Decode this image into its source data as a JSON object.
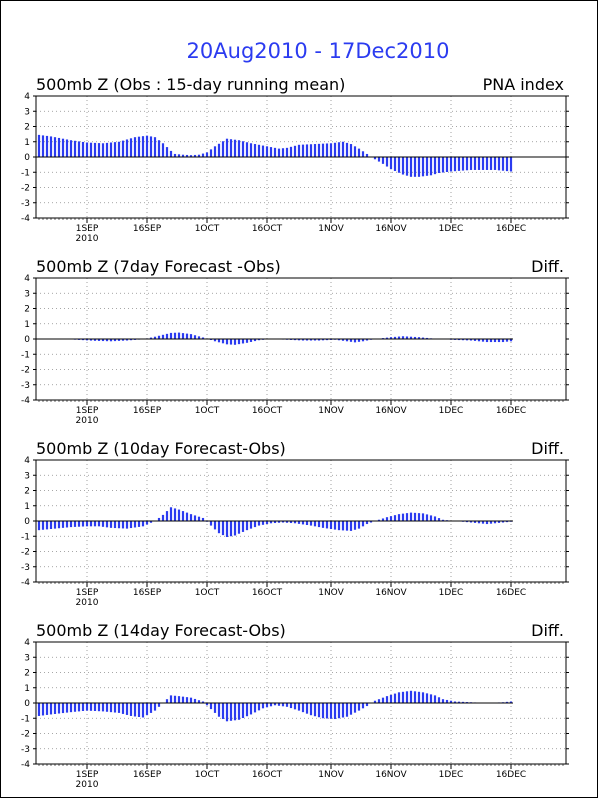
{
  "title": "20Aug2010 - 17Dec2010",
  "colors": {
    "bar": "#2b3bf0",
    "title": "#2b3bf0",
    "axis": "#000000",
    "grid": "#8a8a8a"
  },
  "chart_data": [
    {
      "type": "bar",
      "title": "500mb Z (Obs : 15-day running mean)",
      "right_label": "PNA index",
      "ylim": [
        -4,
        4
      ],
      "yticks": [
        "4",
        "3",
        "2",
        "1",
        "0",
        "-1",
        "-2",
        "-3",
        "-4"
      ],
      "xticks": [
        {
          "day": 12,
          "label": "1SEP",
          "sub": "2010"
        },
        {
          "day": 27,
          "label": "16SEP"
        },
        {
          "day": 42,
          "label": "1OCT"
        },
        {
          "day": 57,
          "label": "16OCT"
        },
        {
          "day": 73,
          "label": "1NOV"
        },
        {
          "day": 88,
          "label": "16NOV"
        },
        {
          "day": 103,
          "label": "1DEC"
        },
        {
          "day": 118,
          "label": "16DEC"
        }
      ],
      "x_end": 131,
      "keypoints": [
        [
          0,
          1.45
        ],
        [
          3,
          1.35
        ],
        [
          8,
          1.1
        ],
        [
          12,
          0.95
        ],
        [
          16,
          0.9
        ],
        [
          20,
          1.0
        ],
        [
          24,
          1.3
        ],
        [
          27,
          1.4
        ],
        [
          29,
          1.3
        ],
        [
          31,
          0.9
        ],
        [
          33,
          0.4
        ],
        [
          34,
          0.2
        ],
        [
          36,
          0.15
        ],
        [
          38,
          0.12
        ],
        [
          40,
          0.15
        ],
        [
          42,
          0.3
        ],
        [
          44,
          0.7
        ],
        [
          47,
          1.2
        ],
        [
          50,
          1.1
        ],
        [
          53,
          0.9
        ],
        [
          57,
          0.7
        ],
        [
          60,
          0.55
        ],
        [
          62,
          0.6
        ],
        [
          65,
          0.8
        ],
        [
          69,
          0.85
        ],
        [
          73,
          0.9
        ],
        [
          76,
          1.0
        ],
        [
          78,
          0.85
        ],
        [
          80,
          0.55
        ],
        [
          82,
          0.2
        ],
        [
          84,
          -0.15
        ],
        [
          86,
          -0.45
        ],
        [
          88,
          -0.8
        ],
        [
          91,
          -1.15
        ],
        [
          93,
          -1.3
        ],
        [
          95,
          -1.3
        ],
        [
          98,
          -1.2
        ],
        [
          100,
          -1.05
        ],
        [
          103,
          -0.95
        ],
        [
          108,
          -0.85
        ],
        [
          114,
          -0.85
        ],
        [
          118,
          -0.95
        ]
      ],
      "data_end": 118
    },
    {
      "type": "bar",
      "title": "500mb Z (7day Forecast -Obs)",
      "right_label": "Diff.",
      "ylim": [
        -4,
        4
      ],
      "yticks": [
        "4",
        "3",
        "2",
        "1",
        "0",
        "-1",
        "-2",
        "-3",
        "-4"
      ],
      "xticks": [
        {
          "day": 12,
          "label": "1SEP",
          "sub": "2010"
        },
        {
          "day": 27,
          "label": "16SEP"
        },
        {
          "day": 42,
          "label": "1OCT"
        },
        {
          "day": 57,
          "label": "16OCT"
        },
        {
          "day": 73,
          "label": "1NOV"
        },
        {
          "day": 88,
          "label": "16NOV"
        },
        {
          "day": 103,
          "label": "1DEC"
        },
        {
          "day": 118,
          "label": "16DEC"
        }
      ],
      "x_end": 131,
      "keypoints": [
        [
          0,
          0
        ],
        [
          8,
          -0.03
        ],
        [
          14,
          -0.12
        ],
        [
          18,
          -0.15
        ],
        [
          22,
          -0.1
        ],
        [
          26,
          -0.02
        ],
        [
          29,
          0.15
        ],
        [
          33,
          0.4
        ],
        [
          35,
          0.42
        ],
        [
          38,
          0.32
        ],
        [
          41,
          0.1
        ],
        [
          44,
          -0.15
        ],
        [
          47,
          -0.35
        ],
        [
          49,
          -0.38
        ],
        [
          52,
          -0.25
        ],
        [
          55,
          -0.08
        ],
        [
          58,
          0
        ],
        [
          62,
          -0.05
        ],
        [
          66,
          -0.1
        ],
        [
          70,
          -0.1
        ],
        [
          74,
          -0.05
        ],
        [
          77,
          -0.15
        ],
        [
          79,
          -0.22
        ],
        [
          81,
          -0.15
        ],
        [
          84,
          0
        ],
        [
          88,
          0.12
        ],
        [
          91,
          0.18
        ],
        [
          95,
          0.12
        ],
        [
          99,
          0.02
        ],
        [
          103,
          -0.05
        ],
        [
          108,
          -0.1
        ],
        [
          112,
          -0.2
        ],
        [
          116,
          -0.2
        ],
        [
          118,
          -0.15
        ]
      ],
      "data_end": 118
    },
    {
      "type": "bar",
      "title": "500mb Z (10day Forecast-Obs)",
      "right_label": "Diff.",
      "ylim": [
        -4,
        4
      ],
      "yticks": [
        "4",
        "3",
        "2",
        "1",
        "0",
        "-1",
        "-2",
        "-3",
        "-4"
      ],
      "xticks": [
        {
          "day": 12,
          "label": "1SEP",
          "sub": "2010"
        },
        {
          "day": 27,
          "label": "16SEP"
        },
        {
          "day": 42,
          "label": "1OCT"
        },
        {
          "day": 57,
          "label": "16OCT"
        },
        {
          "day": 73,
          "label": "1NOV"
        },
        {
          "day": 88,
          "label": "16NOV"
        },
        {
          "day": 103,
          "label": "1DEC"
        },
        {
          "day": 118,
          "label": "16DEC"
        }
      ],
      "x_end": 131,
      "keypoints": [
        [
          0,
          -0.6
        ],
        [
          4,
          -0.5
        ],
        [
          8,
          -0.4
        ],
        [
          12,
          -0.35
        ],
        [
          15,
          -0.35
        ],
        [
          18,
          -0.45
        ],
        [
          22,
          -0.5
        ],
        [
          26,
          -0.35
        ],
        [
          29,
          0
        ],
        [
          31,
          0.4
        ],
        [
          33,
          0.9
        ],
        [
          35,
          0.75
        ],
        [
          38,
          0.45
        ],
        [
          41,
          0.2
        ],
        [
          43,
          -0.3
        ],
        [
          45,
          -0.8
        ],
        [
          47,
          -1.05
        ],
        [
          49,
          -0.95
        ],
        [
          52,
          -0.6
        ],
        [
          55,
          -0.3
        ],
        [
          58,
          -0.15
        ],
        [
          61,
          -0.1
        ],
        [
          64,
          -0.15
        ],
        [
          68,
          -0.3
        ],
        [
          71,
          -0.45
        ],
        [
          75,
          -0.6
        ],
        [
          78,
          -0.65
        ],
        [
          80,
          -0.5
        ],
        [
          82,
          -0.2
        ],
        [
          84,
          0
        ],
        [
          87,
          0.25
        ],
        [
          90,
          0.45
        ],
        [
          93,
          0.55
        ],
        [
          96,
          0.5
        ],
        [
          99,
          0.3
        ],
        [
          101,
          0.08
        ],
        [
          104,
          0
        ],
        [
          108,
          -0.1
        ],
        [
          112,
          -0.2
        ],
        [
          116,
          -0.1
        ],
        [
          118,
          -0.05
        ]
      ],
      "data_end": 118
    },
    {
      "type": "bar",
      "title": "500mb Z (14day Forecast-Obs)",
      "right_label": "Diff.",
      "ylim": [
        -4,
        4
      ],
      "yticks": [
        "4",
        "3",
        "2",
        "1",
        "0",
        "-1",
        "-2",
        "-3",
        "-4"
      ],
      "xticks": [
        {
          "day": 12,
          "label": "1SEP",
          "sub": "2010"
        },
        {
          "day": 27,
          "label": "16SEP"
        },
        {
          "day": 42,
          "label": "1OCT"
        },
        {
          "day": 57,
          "label": "16OCT"
        },
        {
          "day": 73,
          "label": "1NOV"
        },
        {
          "day": 88,
          "label": "16NOV"
        },
        {
          "day": 103,
          "label": "1DEC"
        },
        {
          "day": 118,
          "label": "16DEC"
        }
      ],
      "x_end": 131,
      "keypoints": [
        [
          0,
          -0.85
        ],
        [
          3,
          -0.75
        ],
        [
          8,
          -0.6
        ],
        [
          12,
          -0.5
        ],
        [
          16,
          -0.55
        ],
        [
          20,
          -0.65
        ],
        [
          23,
          -0.85
        ],
        [
          26,
          -0.95
        ],
        [
          29,
          -0.5
        ],
        [
          31,
          0
        ],
        [
          33,
          0.5
        ],
        [
          35,
          0.45
        ],
        [
          38,
          0.35
        ],
        [
          41,
          0.1
        ],
        [
          43,
          -0.4
        ],
        [
          45,
          -0.9
        ],
        [
          47,
          -1.2
        ],
        [
          50,
          -1.1
        ],
        [
          53,
          -0.75
        ],
        [
          56,
          -0.35
        ],
        [
          59,
          -0.15
        ],
        [
          62,
          -0.25
        ],
        [
          65,
          -0.5
        ],
        [
          68,
          -0.8
        ],
        [
          71,
          -1.0
        ],
        [
          74,
          -1.05
        ],
        [
          77,
          -0.9
        ],
        [
          80,
          -0.5
        ],
        [
          82,
          -0.2
        ],
        [
          84,
          0.15
        ],
        [
          87,
          0.45
        ],
        [
          90,
          0.7
        ],
        [
          93,
          0.8
        ],
        [
          96,
          0.7
        ],
        [
          99,
          0.5
        ],
        [
          101,
          0.25
        ],
        [
          104,
          0.1
        ],
        [
          108,
          0.05
        ],
        [
          112,
          0
        ],
        [
          116,
          0.05
        ],
        [
          118,
          0.1
        ]
      ],
      "data_end": 118
    }
  ]
}
